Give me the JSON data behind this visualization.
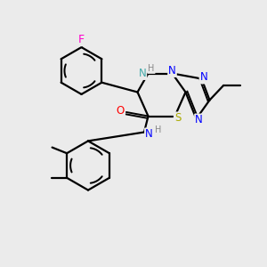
{
  "bg_color": "#ebebeb",
  "bond_color": "#000000",
  "bond_width": 1.6,
  "atom_colors": {
    "F": "#ff00cc",
    "O": "#ff0000",
    "N": "#0000ff",
    "S": "#aaaa00",
    "C": "#000000"
  },
  "font_size": 8.5,
  "fig_width": 3.0,
  "fig_height": 3.0,
  "dpi": 100
}
